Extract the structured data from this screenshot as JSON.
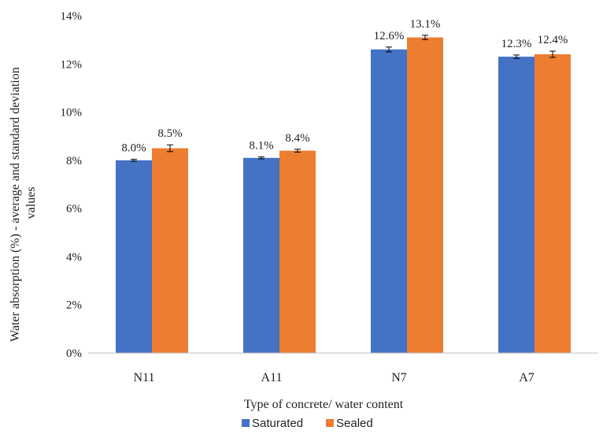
{
  "chart_data": {
    "type": "bar",
    "title": "",
    "xlabel": "Type of concrete/ water content",
    "ylabel_lines": [
      "Water absorption (%) - average and standard deviation",
      "values"
    ],
    "categories": [
      "N11",
      "A11",
      "N7",
      "A7"
    ],
    "ylim": [
      0,
      14
    ],
    "yticks": [
      0,
      2,
      4,
      6,
      8,
      10,
      12,
      14
    ],
    "ytick_labels": [
      "0%",
      "2%",
      "4%",
      "6%",
      "8%",
      "10%",
      "12%",
      "14%"
    ],
    "grid": false,
    "legend_position": "bottom",
    "series": [
      {
        "name": "Saturated",
        "color": "#4472C4",
        "values": [
          8.0,
          8.1,
          12.6,
          12.3
        ],
        "labels": [
          "8.0%",
          "8.1%",
          "12.6%",
          "12.3%"
        ],
        "error": [
          0.04,
          0.04,
          0.1,
          0.07
        ]
      },
      {
        "name": "Sealed",
        "color": "#ED7D31",
        "values": [
          8.5,
          8.4,
          13.1,
          12.4
        ],
        "labels": [
          "8.5%",
          "8.4%",
          "13.1%",
          "12.4%"
        ],
        "error": [
          0.14,
          0.06,
          0.09,
          0.13
        ]
      }
    ]
  }
}
